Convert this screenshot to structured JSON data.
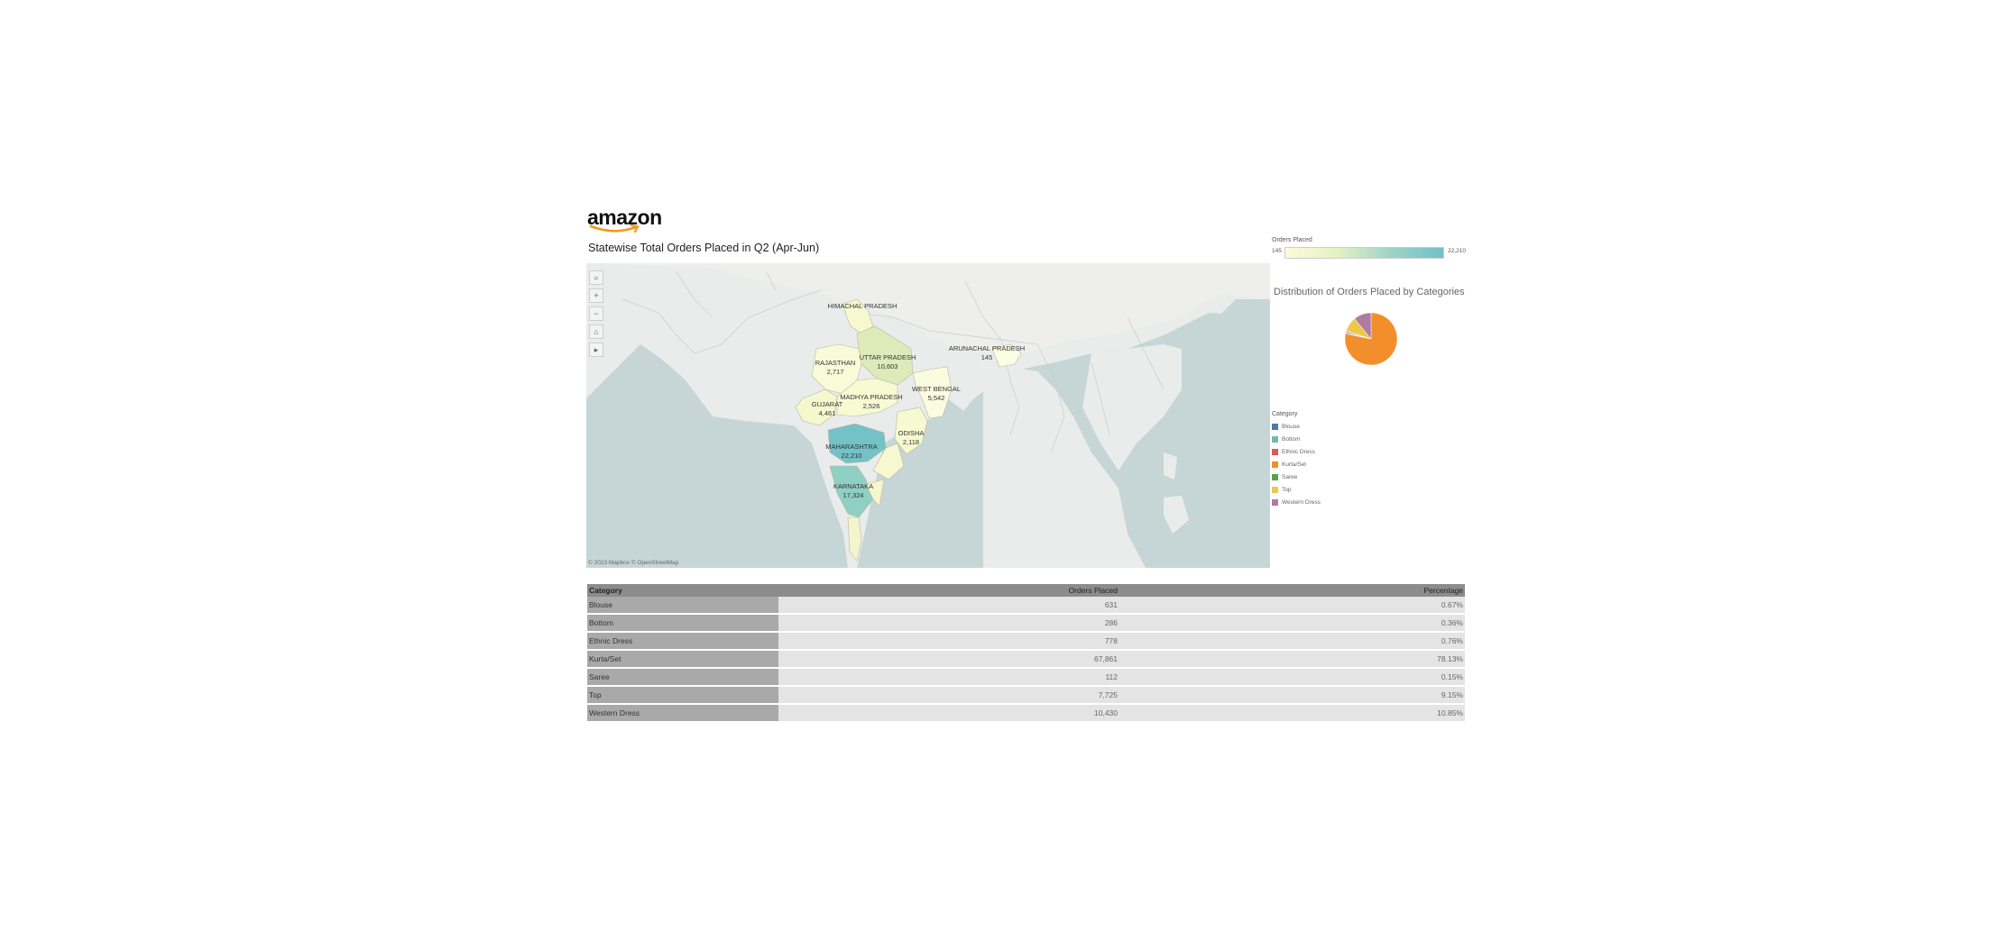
{
  "logo": {
    "text": "amazon"
  },
  "map": {
    "title": "Statewise Total Orders Placed in Q2 (Apr-Jun)",
    "attribution": "© 2023 Mapbox  © OpenStreetMap",
    "tools": [
      "search-icon",
      "zoom-in-icon",
      "zoom-out-icon",
      "home-icon",
      "arrow-right-icon"
    ],
    "tool_glyphs": [
      "⌕",
      "+",
      "−",
      "⌂",
      "▸"
    ],
    "states": [
      {
        "name": "HIMACHAL PRADESH",
        "value": ""
      },
      {
        "name": "UTTAR PRADESH",
        "value": "10,603"
      },
      {
        "name": "ARUNACHAL PRADESH",
        "value": "145"
      },
      {
        "name": "RAJASTHAN",
        "value": "2,717"
      },
      {
        "name": "WEST BENGAL",
        "value": "5,542"
      },
      {
        "name": "GUJARAT",
        "value": "4,461"
      },
      {
        "name": "MADHYA PRADESH",
        "value": "2,526"
      },
      {
        "name": "ODISHA",
        "value": "2,118"
      },
      {
        "name": "MAHARASHTRA",
        "value": "22,210"
      },
      {
        "name": "KARNATAKA",
        "value": "17,324"
      }
    ]
  },
  "color_legend": {
    "title": "Orders Placed",
    "min": "145",
    "max": "22,210"
  },
  "pie": {
    "title": "Distribution of Orders Placed by Categories"
  },
  "category_legend": {
    "title": "Category",
    "items": [
      {
        "label": "Blouse",
        "color": "#4e79a7"
      },
      {
        "label": "Bottom",
        "color": "#76b7b2"
      },
      {
        "label": "Ethnic Dress",
        "color": "#e15759"
      },
      {
        "label": "Kurta/Set",
        "color": "#f28e2b"
      },
      {
        "label": "Saree",
        "color": "#59a14f"
      },
      {
        "label": "Top",
        "color": "#edc948"
      },
      {
        "label": "Western Dress",
        "color": "#b07aa1"
      }
    ]
  },
  "table": {
    "headers": [
      "Category",
      "Orders Placed",
      "Percentage"
    ],
    "rows": [
      [
        "Blouse",
        "631",
        "0.67%"
      ],
      [
        "Bottom",
        "286",
        "0.36%"
      ],
      [
        "Ethnic Dress",
        "778",
        "0.76%"
      ],
      [
        "Kurta/Set",
        "67,861",
        "78.13%"
      ],
      [
        "Saree",
        "112",
        "0.15%"
      ],
      [
        "Top",
        "7,725",
        "9.15%"
      ],
      [
        "Western Dress",
        "10,430",
        "10.85%"
      ]
    ]
  },
  "chart_data": {
    "type": "pie",
    "title": "Distribution of Orders Placed by Categories",
    "categories": [
      "Blouse",
      "Bottom",
      "Ethnic Dress",
      "Kurta/Set",
      "Saree",
      "Top",
      "Western Dress"
    ],
    "values": [
      0.67,
      0.36,
      0.76,
      78.13,
      0.15,
      9.15,
      10.85
    ],
    "colors": [
      "#4e79a7",
      "#76b7b2",
      "#e15759",
      "#f28e2b",
      "#59a14f",
      "#edc948",
      "#b07aa1"
    ]
  }
}
